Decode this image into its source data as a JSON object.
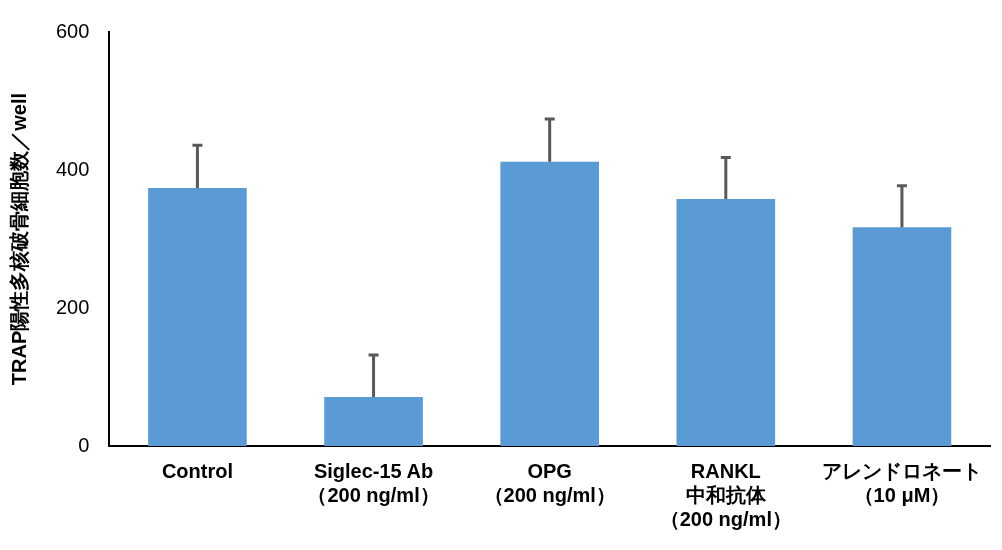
{
  "chart_data": {
    "type": "bar",
    "ylabel": "TRAP陽性多核破骨細胞数／well",
    "categories": [
      "Control",
      "Siglec-15 Ab（200 ng/ml）",
      "OPG（200 ng/ml）",
      "RANKL\n中和抗体（200 ng/ml）",
      "アレンドロネート（10 μM）"
    ],
    "values": [
      374,
      71,
      412,
      358,
      317
    ],
    "errors": [
      [
        374,
        436
      ],
      [
        71,
        132
      ],
      [
        412,
        474
      ],
      [
        358,
        418
      ],
      [
        317,
        377
      ]
    ],
    "color": "#5b9bd5",
    "ylim": [
      0,
      600
    ],
    "yticks": [
      0,
      200,
      400,
      600
    ],
    "grid": false,
    "legend": false
  }
}
